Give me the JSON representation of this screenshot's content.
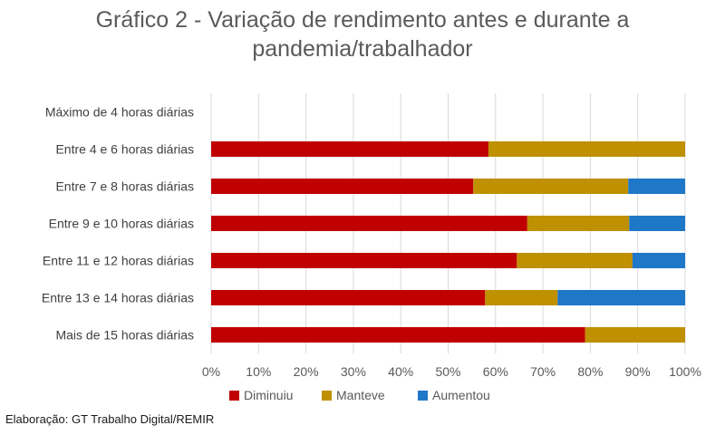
{
  "chart_data": {
    "type": "bar",
    "orientation": "horizontal",
    "stacked": "percent",
    "title_line1": "Gráfico 2 - Variação de rendimento antes e durante a",
    "title_line2": "pandemia/trabalhador",
    "categories": [
      "Máximo de 4 horas diárias",
      "Entre 4 e 6 horas diárias",
      "Entre 7 e 8 horas diárias",
      "Entre 9 e 10 horas diárias",
      "Entre 11 e 12 horas diárias",
      "Entre 13 e 14 horas diárias",
      "Mais de 15 horas diárias"
    ],
    "series": [
      {
        "name": "Diminuiu",
        "color": "#c00000",
        "values": [
          0,
          58.5,
          55.3,
          66.7,
          64.5,
          57.8,
          78.9
        ]
      },
      {
        "name": "Manteve",
        "color": "#bf9000",
        "values": [
          0,
          41.5,
          32.7,
          21.5,
          24.4,
          15.3,
          21.1
        ]
      },
      {
        "name": "Aumentou",
        "color": "#1f77c8",
        "values": [
          0,
          0,
          12.0,
          11.8,
          11.1,
          26.9,
          0
        ]
      }
    ],
    "xticks": [
      "0%",
      "10%",
      "20%",
      "30%",
      "40%",
      "50%",
      "60%",
      "70%",
      "80%",
      "90%",
      "100%"
    ],
    "xlim": [
      0,
      100
    ],
    "grid": true,
    "legend_position": "bottom"
  },
  "footer": {
    "credit": "Elaboração: GT Trabalho Digital/REMIR"
  }
}
